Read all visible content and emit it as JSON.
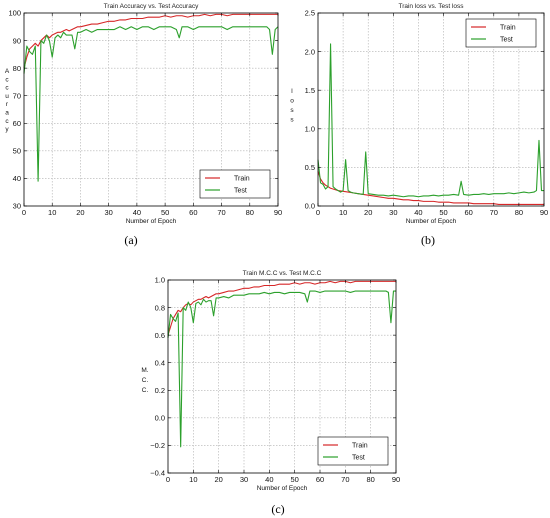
{
  "chart_data": [
    {
      "id": "a",
      "type": "line",
      "title": "Train Accuracy vs. Test Accuracy",
      "xlabel": "Number of Epoch",
      "ylabel_chars": [
        "A",
        "c",
        "c",
        "u",
        "r",
        "a",
        "c",
        "y"
      ],
      "xlim": [
        0,
        90
      ],
      "ylim": [
        30,
        100
      ],
      "xticks": [
        0,
        10,
        20,
        30,
        40,
        50,
        60,
        70,
        80,
        90
      ],
      "yticks": [
        30,
        40,
        50,
        60,
        70,
        80,
        90,
        100
      ],
      "legend_position": "lower-right",
      "caption": "(a)",
      "grid": true,
      "series": [
        {
          "name": "Train",
          "color": "#d62728",
          "x": [
            0,
            1,
            2,
            3,
            4,
            5,
            6,
            7,
            8,
            9,
            10,
            11,
            12,
            13,
            14,
            15,
            16,
            17,
            18,
            19,
            20,
            22,
            24,
            26,
            28,
            30,
            32,
            34,
            36,
            38,
            40,
            42,
            44,
            46,
            48,
            50,
            52,
            54,
            56,
            58,
            60,
            62,
            64,
            66,
            68,
            70,
            72,
            74,
            76,
            78,
            80,
            82,
            84,
            86,
            88,
            90
          ],
          "y": [
            80,
            84,
            87,
            88,
            89,
            88,
            90,
            91,
            92,
            91,
            92,
            92.5,
            93,
            93,
            93.5,
            94,
            93.5,
            94,
            94.5,
            95,
            95,
            95.5,
            96,
            96,
            96.5,
            97,
            97,
            97.5,
            97.5,
            98,
            98,
            98,
            98.5,
            98.5,
            98.5,
            99,
            98.5,
            99,
            99,
            98.5,
            99,
            99,
            99.5,
            99,
            99.5,
            99.5,
            99,
            99.5,
            99.5,
            99.5,
            99.5,
            99.5,
            99.5,
            99.5,
            99.5,
            99.5
          ]
        },
        {
          "name": "Test",
          "color": "#2ca02c",
          "x": [
            0,
            1,
            2,
            3,
            4,
            5,
            6,
            7,
            8,
            9,
            10,
            11,
            12,
            13,
            14,
            15,
            16,
            17,
            18,
            19,
            20,
            22,
            24,
            26,
            28,
            30,
            32,
            34,
            36,
            38,
            40,
            42,
            44,
            46,
            48,
            50,
            52,
            54,
            55,
            56,
            58,
            60,
            62,
            64,
            66,
            68,
            70,
            72,
            74,
            76,
            78,
            80,
            82,
            84,
            86,
            87,
            88,
            89,
            90
          ],
          "y": [
            78,
            88,
            86,
            85,
            88,
            39,
            90,
            89,
            92,
            90,
            84,
            91,
            92,
            91,
            93,
            92,
            92,
            92,
            87,
            93,
            93,
            94,
            93,
            94,
            94,
            94,
            94,
            95,
            94,
            95,
            94,
            95,
            95,
            94,
            95,
            95,
            95,
            94,
            91,
            95,
            95,
            94,
            95,
            95,
            95,
            95,
            95,
            94,
            95,
            95,
            95,
            95,
            95,
            95,
            95,
            94,
            85,
            94,
            95
          ]
        }
      ]
    },
    {
      "id": "b",
      "type": "line",
      "title": "Train loss vs. Test loss",
      "xlabel": "Number of  Epoch",
      "ylabel_chars": [
        "l",
        "o",
        "s",
        "s"
      ],
      "xlim": [
        0,
        90
      ],
      "ylim": [
        0,
        2.5
      ],
      "xticks": [
        0,
        10,
        20,
        30,
        40,
        50,
        60,
        70,
        80,
        90
      ],
      "yticks": [
        0.0,
        0.5,
        1.0,
        1.5,
        2.0,
        2.5
      ],
      "yticklabels": [
        "0.0",
        "0.5",
        "1.0",
        "1.5",
        "2.0",
        "2.5"
      ],
      "legend_position": "upper-right",
      "caption": "(b)",
      "grid": true,
      "series": [
        {
          "name": "Train",
          "color": "#d62728",
          "x": [
            0,
            1,
            2,
            3,
            4,
            5,
            6,
            8,
            10,
            12,
            14,
            16,
            18,
            20,
            22,
            24,
            26,
            28,
            30,
            32,
            34,
            36,
            38,
            40,
            42,
            44,
            46,
            48,
            50,
            52,
            54,
            56,
            58,
            60,
            62,
            64,
            66,
            68,
            70,
            72,
            74,
            76,
            78,
            80,
            82,
            84,
            86,
            88,
            90
          ],
          "y": [
            0.45,
            0.35,
            0.3,
            0.27,
            0.25,
            0.23,
            0.22,
            0.2,
            0.19,
            0.18,
            0.17,
            0.16,
            0.15,
            0.14,
            0.13,
            0.12,
            0.11,
            0.1,
            0.1,
            0.09,
            0.08,
            0.08,
            0.07,
            0.07,
            0.06,
            0.06,
            0.06,
            0.05,
            0.05,
            0.05,
            0.04,
            0.04,
            0.04,
            0.04,
            0.03,
            0.03,
            0.03,
            0.03,
            0.03,
            0.02,
            0.02,
            0.02,
            0.02,
            0.02,
            0.02,
            0.02,
            0.02,
            0.02,
            0.02
          ]
        },
        {
          "name": "Test",
          "color": "#2ca02c",
          "x": [
            0,
            1,
            2,
            3,
            4,
            5,
            6,
            7,
            8,
            9,
            10,
            11,
            12,
            13,
            14,
            16,
            18,
            19,
            20,
            22,
            24,
            26,
            28,
            30,
            32,
            34,
            36,
            38,
            40,
            42,
            44,
            46,
            48,
            50,
            52,
            54,
            56,
            57,
            58,
            60,
            62,
            64,
            66,
            68,
            70,
            72,
            74,
            76,
            78,
            80,
            82,
            84,
            86,
            87,
            88,
            89,
            90
          ],
          "y": [
            0.6,
            0.3,
            0.28,
            0.22,
            0.25,
            2.1,
            0.25,
            0.22,
            0.2,
            0.18,
            0.2,
            0.6,
            0.2,
            0.18,
            0.17,
            0.16,
            0.15,
            0.7,
            0.16,
            0.15,
            0.14,
            0.14,
            0.13,
            0.14,
            0.13,
            0.12,
            0.13,
            0.13,
            0.12,
            0.13,
            0.13,
            0.14,
            0.13,
            0.14,
            0.14,
            0.15,
            0.14,
            0.32,
            0.15,
            0.14,
            0.15,
            0.15,
            0.16,
            0.15,
            0.16,
            0.16,
            0.16,
            0.17,
            0.16,
            0.17,
            0.18,
            0.17,
            0.18,
            0.2,
            0.85,
            0.2,
            0.2
          ]
        }
      ]
    },
    {
      "id": "c",
      "type": "line",
      "title": "Train M.C.C vs. Test M.C.C",
      "xlabel": "Number of Epoch",
      "ylabel_chars": [
        "M.",
        "C.",
        "C."
      ],
      "xlim": [
        0,
        90
      ],
      "ylim": [
        -0.4,
        1.0
      ],
      "xticks": [
        0,
        10,
        20,
        30,
        40,
        50,
        60,
        70,
        80,
        90
      ],
      "yticks": [
        -0.4,
        -0.2,
        0.0,
        0.2,
        0.4,
        0.6,
        0.8,
        1.0
      ],
      "yticklabels": [
        "−0.4",
        "−0.2",
        "0.0",
        "0.2",
        "0.4",
        "0.6",
        "0.8",
        "1.0"
      ],
      "legend_position": "lower-right",
      "caption": "(c)",
      "grid": true,
      "series": [
        {
          "name": "Train",
          "color": "#d62728",
          "x": [
            0,
            1,
            2,
            3,
            4,
            5,
            6,
            7,
            8,
            9,
            10,
            11,
            12,
            13,
            14,
            15,
            16,
            17,
            18,
            19,
            20,
            22,
            24,
            26,
            28,
            30,
            32,
            34,
            36,
            38,
            40,
            42,
            44,
            46,
            48,
            50,
            52,
            54,
            56,
            58,
            60,
            62,
            64,
            66,
            68,
            70,
            72,
            74,
            76,
            78,
            80,
            82,
            84,
            86,
            88,
            90
          ],
          "y": [
            0.6,
            0.66,
            0.72,
            0.75,
            0.78,
            0.77,
            0.8,
            0.82,
            0.83,
            0.82,
            0.84,
            0.85,
            0.86,
            0.86,
            0.87,
            0.88,
            0.87,
            0.88,
            0.89,
            0.9,
            0.9,
            0.91,
            0.92,
            0.92,
            0.93,
            0.94,
            0.94,
            0.95,
            0.95,
            0.96,
            0.96,
            0.96,
            0.97,
            0.97,
            0.97,
            0.98,
            0.97,
            0.98,
            0.98,
            0.97,
            0.98,
            0.98,
            0.99,
            0.98,
            0.99,
            0.99,
            0.98,
            0.99,
            0.99,
            0.99,
            0.99,
            0.99,
            0.99,
            0.99,
            0.99,
            0.99
          ]
        },
        {
          "name": "Test",
          "color": "#2ca02c",
          "x": [
            0,
            1,
            2,
            3,
            4,
            5,
            6,
            7,
            8,
            9,
            10,
            11,
            12,
            13,
            14,
            15,
            16,
            17,
            18,
            19,
            20,
            22,
            24,
            26,
            28,
            30,
            32,
            34,
            36,
            38,
            40,
            42,
            44,
            46,
            48,
            50,
            52,
            54,
            55,
            56,
            58,
            60,
            62,
            64,
            66,
            68,
            70,
            72,
            74,
            76,
            78,
            80,
            82,
            84,
            86,
            87,
            88,
            89,
            90
          ],
          "y": [
            0.58,
            0.75,
            0.72,
            0.7,
            0.76,
            -0.21,
            0.8,
            0.78,
            0.84,
            0.8,
            0.69,
            0.83,
            0.84,
            0.82,
            0.86,
            0.84,
            0.85,
            0.85,
            0.74,
            0.87,
            0.87,
            0.88,
            0.87,
            0.89,
            0.89,
            0.89,
            0.9,
            0.9,
            0.9,
            0.91,
            0.9,
            0.91,
            0.91,
            0.9,
            0.91,
            0.91,
            0.91,
            0.9,
            0.84,
            0.92,
            0.92,
            0.91,
            0.92,
            0.92,
            0.92,
            0.92,
            0.92,
            0.91,
            0.92,
            0.92,
            0.92,
            0.92,
            0.92,
            0.92,
            0.92,
            0.91,
            0.69,
            0.92,
            0.92
          ]
        }
      ]
    }
  ]
}
